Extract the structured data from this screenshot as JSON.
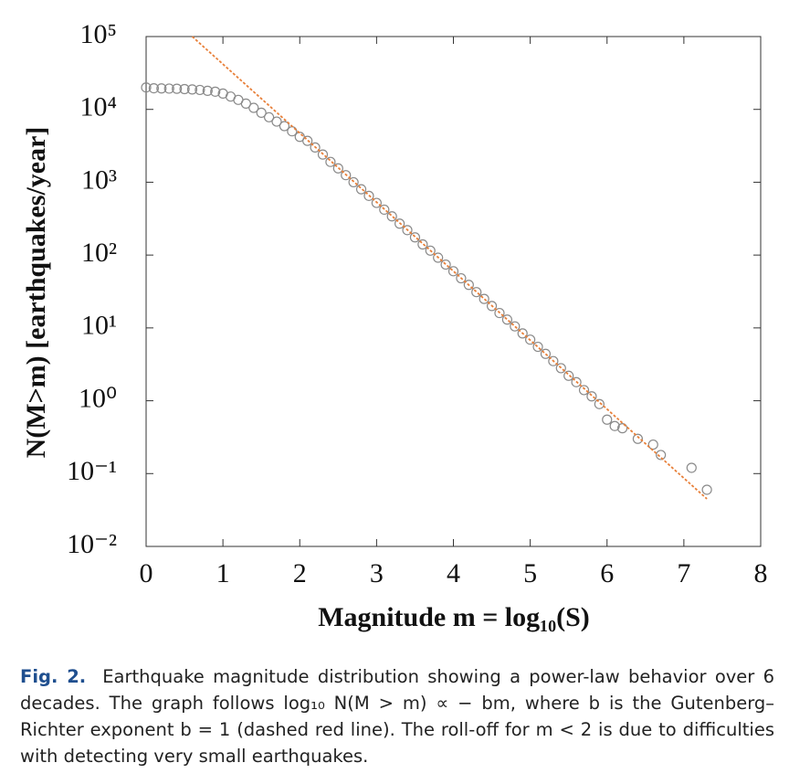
{
  "chart_data": {
    "type": "scatter",
    "xlabel": "Magnitude m = log₁₀(S)",
    "ylabel": "N(M>m) [earthquakes/year]",
    "xlim": [
      0,
      8
    ],
    "xticks": [
      0,
      1,
      2,
      3,
      4,
      5,
      6,
      7,
      8
    ],
    "ylim": [
      0.01,
      100000
    ],
    "log_y": true,
    "yticks": [
      {
        "value": 100000,
        "label": "10⁵"
      },
      {
        "value": 10000,
        "label": "10⁴"
      },
      {
        "value": 1000,
        "label": "10³"
      },
      {
        "value": 100,
        "label": "10²"
      },
      {
        "value": 10,
        "label": "10¹"
      },
      {
        "value": 1,
        "label": "10⁰"
      },
      {
        "value": 0.1,
        "label": "10⁻¹"
      },
      {
        "value": 0.01,
        "label": "10⁻²"
      }
    ],
    "series": [
      {
        "type": "scatter",
        "color": "#8a8a8a",
        "x": [
          0,
          0.1,
          0.2,
          0.3,
          0.4,
          0.5,
          0.6,
          0.7,
          0.8,
          0.9,
          1.0,
          1.1,
          1.2,
          1.3,
          1.4,
          1.5,
          1.6,
          1.7,
          1.8,
          1.9,
          2.0,
          2.1,
          2.2,
          2.3,
          2.4,
          2.5,
          2.6,
          2.7,
          2.8,
          2.9,
          3.0,
          3.1,
          3.2,
          3.3,
          3.4,
          3.5,
          3.6,
          3.7,
          3.8,
          3.9,
          4.0,
          4.1,
          4.2,
          4.3,
          4.4,
          4.5,
          4.6,
          4.7,
          4.8,
          4.9,
          5.0,
          5.1,
          5.2,
          5.3,
          5.4,
          5.5,
          5.6,
          5.7,
          5.8,
          5.9,
          6.0,
          6.1,
          6.2,
          6.4,
          6.6,
          6.7,
          7.1,
          7.3
        ],
        "values": [
          20000,
          19500,
          19400,
          19300,
          19200,
          19000,
          18800,
          18500,
          18000,
          17500,
          16500,
          15000,
          13500,
          12000,
          10500,
          9000,
          7800,
          6800,
          5900,
          5000,
          4200,
          3700,
          3000,
          2400,
          1900,
          1550,
          1250,
          1000,
          800,
          650,
          520,
          420,
          340,
          270,
          220,
          175,
          140,
          115,
          92,
          74,
          60,
          48,
          39,
          31,
          25,
          20,
          16,
          13,
          10.5,
          8.4,
          6.9,
          5.5,
          4.4,
          3.5,
          2.8,
          2.2,
          1.8,
          1.4,
          1.15,
          0.9,
          0.55,
          0.45,
          0.42,
          0.3,
          0.25,
          0.18,
          0.12,
          0.06
        ]
      },
      {
        "type": "line",
        "color": "#e8803a",
        "dashed": true,
        "x": [
          0.6,
          7.3
        ],
        "values": [
          100000,
          0.045
        ]
      }
    ]
  },
  "caption": {
    "label": "Fig. 2.",
    "text": "Earthquake magnitude distribution showing a power-law behavior over 6 decades. The graph follows log₁₀ N(M > m) ∝ − bm, where b is the Gutenberg–Richter exponent b = 1 (dashed red line). The roll-off for m < 2 is due to difficulties with detecting very small earthquakes."
  }
}
